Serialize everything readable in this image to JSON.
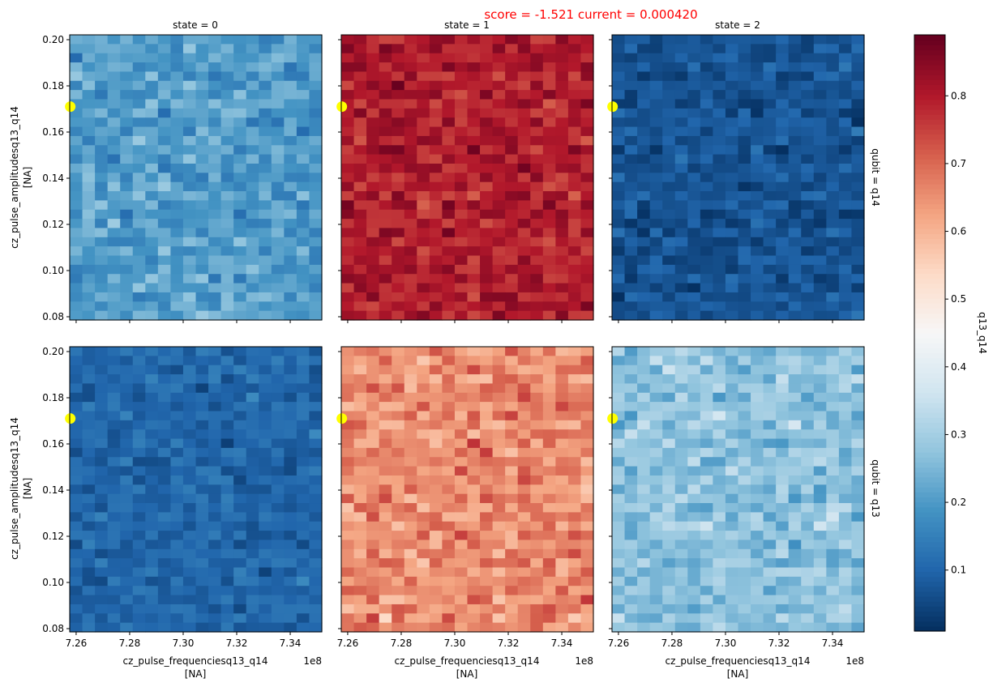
{
  "chart_data": {
    "type": "heatmap",
    "suptitle": "score = -1.521   current = 0.000420",
    "suptitle_color": "#ff0000",
    "colormap": "RdBu_r",
    "colorbar": {
      "label": "q13_q14",
      "vmin": 0.01,
      "vmax": 0.89,
      "ticks": [
        0.1,
        0.2,
        0.3,
        0.4,
        0.5,
        0.6,
        0.7,
        0.8
      ]
    },
    "xlabel": "cz_pulse_frequenciesq13_q14",
    "xlabel_unit": "[NA]",
    "x_offset_label": "1e8",
    "ylabel": "cz_pulse_amplitudesq13_q14",
    "ylabel_unit": "[NA]",
    "xlim": [
      7.2576,
      7.3518
    ],
    "ylim": [
      0.0786,
      0.2021
    ],
    "xticks": [
      7.26,
      7.28,
      7.3,
      7.32,
      7.34
    ],
    "yticks": [
      0.08,
      0.1,
      0.12,
      0.14,
      0.16,
      0.18,
      0.2
    ],
    "grid_columns": 20,
    "grid_rows": 31,
    "col_titles": [
      "state = 0",
      "state = 1",
      "state = 2"
    ],
    "row_titles": [
      "qubit = q14",
      "qubit = q13"
    ],
    "marker": {
      "x": 7.2578,
      "y": 0.171,
      "color": "#ffff00"
    },
    "panels": [
      {
        "qubit": "q14",
        "state": 0,
        "mean": 0.2,
        "spread": 0.05
      },
      {
        "qubit": "q14",
        "state": 1,
        "mean": 0.8,
        "spread": 0.05
      },
      {
        "qubit": "q14",
        "state": 2,
        "mean": 0.07,
        "spread": 0.035
      },
      {
        "qubit": "q13",
        "state": 0,
        "mean": 0.1,
        "spread": 0.035
      },
      {
        "qubit": "q13",
        "state": 1,
        "mean": 0.66,
        "spread": 0.06
      },
      {
        "qubit": "q13",
        "state": 2,
        "mean": 0.27,
        "spread": 0.05
      }
    ]
  }
}
